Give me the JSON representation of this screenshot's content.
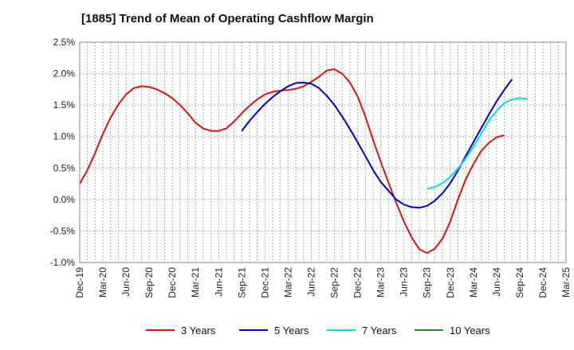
{
  "chart_data": {
    "type": "line",
    "title": "[1885]  Trend of Mean of Operating Cashflow Margin",
    "xlabel": "",
    "ylabel": "",
    "ylim": [
      -1.0,
      2.5
    ],
    "y_ticks": [
      "2.5%",
      "2.0%",
      "1.5%",
      "1.0%",
      "0.5%",
      "0.0%",
      "-0.5%",
      "-1.0%"
    ],
    "x_ticks": [
      "Dec-19",
      "Mar-20",
      "Jun-20",
      "Sep-20",
      "Dec-20",
      "Mar-21",
      "Jun-21",
      "Sep-21",
      "Dec-21",
      "Mar-22",
      "Jun-22",
      "Sep-22",
      "Dec-22",
      "Mar-23",
      "Jun-23",
      "Sep-23",
      "Dec-23",
      "Mar-24",
      "Jun-24",
      "Sep-24",
      "Dec-24",
      "Mar-25"
    ],
    "grid": true,
    "legend_position": "bottom",
    "series": [
      {
        "name": "3 Years",
        "color": "#dd1111",
        "start_month_index": 0,
        "values": [
          0.25,
          0.47,
          0.74,
          1.04,
          1.3,
          1.51,
          1.67,
          1.77,
          1.8,
          1.79,
          1.75,
          1.69,
          1.61,
          1.5,
          1.37,
          1.22,
          1.13,
          1.09,
          1.09,
          1.13,
          1.24,
          1.37,
          1.49,
          1.59,
          1.67,
          1.71,
          1.73,
          1.74,
          1.76,
          1.8,
          1.87,
          1.95,
          2.05,
          2.07,
          2.0,
          1.86,
          1.64,
          1.32,
          0.95,
          0.6,
          0.27,
          -0.05,
          -0.35,
          -0.6,
          -0.79,
          -0.85,
          -0.78,
          -0.62,
          -0.35,
          0.0,
          0.32,
          0.56,
          0.77,
          0.9,
          0.99,
          1.02
        ]
      },
      {
        "name": "5 Years",
        "color": "#0000cc",
        "start_month_index": 21,
        "values": [
          1.09,
          1.25,
          1.39,
          1.52,
          1.63,
          1.72,
          1.8,
          1.85,
          1.86,
          1.84,
          1.77,
          1.65,
          1.5,
          1.32,
          1.12,
          0.91,
          0.69,
          0.47,
          0.28,
          0.14,
          0.0,
          -0.08,
          -0.12,
          -0.13,
          -0.1,
          -0.02,
          0.1,
          0.26,
          0.46,
          0.69,
          0.91,
          1.13,
          1.35,
          1.56,
          1.74,
          1.91
        ]
      },
      {
        "name": "7 Years",
        "color": "#00dddd",
        "start_month_index": 45,
        "values": [
          0.17,
          0.2,
          0.26,
          0.36,
          0.49,
          0.65,
          0.84,
          1.04,
          1.25,
          1.41,
          1.53,
          1.59,
          1.61,
          1.6
        ]
      },
      {
        "name": "10 Years",
        "color": "#228822",
        "start_month_index": 0,
        "values": []
      }
    ]
  }
}
